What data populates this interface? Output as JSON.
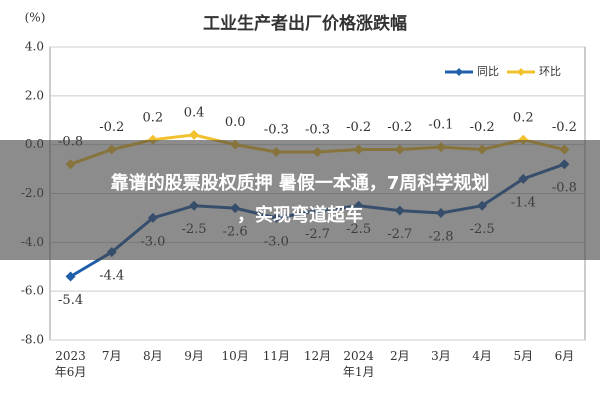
{
  "chart_data": {
    "type": "line",
    "title": "工业生产者出厂价格涨跌幅",
    "y_label": "(%)",
    "categories": [
      "2023年6月",
      "7月",
      "8月",
      "9月",
      "10月",
      "11月",
      "12月",
      "2024年1月",
      "2月",
      "3月",
      "4月",
      "5月",
      "6月"
    ],
    "series": [
      {
        "name": "同比",
        "color": "#1f5ea8",
        "values": [
          -5.4,
          -4.4,
          -3.0,
          -2.5,
          -2.6,
          -3.0,
          -2.7,
          -2.5,
          -2.7,
          -2.8,
          -2.5,
          -1.4,
          -0.8
        ],
        "value_labels": [
          "-5.4",
          "-4.4",
          "-3.0",
          "-2.5",
          "-2.6",
          "-3.0",
          "-2.7",
          "-2.5",
          "-2.7",
          "-2.8",
          "-2.5",
          "-1.4",
          "-0.8"
        ]
      },
      {
        "name": "环比",
        "color": "#f2c12e",
        "values": [
          -0.8,
          -0.2,
          0.2,
          0.4,
          0.0,
          -0.3,
          -0.3,
          -0.2,
          -0.2,
          -0.1,
          -0.2,
          0.2,
          -0.2
        ],
        "value_labels": [
          "-0.8",
          "-0.2",
          "0.2",
          "0.4",
          "0.0",
          "-0.3",
          "-0.3",
          "-0.2",
          "-0.2",
          "-0.1",
          "-0.2",
          "0.2",
          "-0.2"
        ]
      }
    ],
    "ylim": [
      -8,
      4
    ],
    "yticks": [
      {
        "value": -8,
        "label": "-8.0"
      },
      {
        "value": -6,
        "label": "-6.0"
      },
      {
        "value": -4,
        "label": "-4.0"
      },
      {
        "value": -2,
        "label": "-2.0"
      },
      {
        "value": 0,
        "label": "0.0"
      },
      {
        "value": 2,
        "label": "2.0"
      },
      {
        "value": 4,
        "label": "4.0"
      }
    ],
    "grid": true,
    "legend": "top-right"
  },
  "banner": {
    "lines": [
      "靠谱的股票股权质押 暑假一本通，7周科学规划",
      "，实现弯道超车"
    ]
  }
}
